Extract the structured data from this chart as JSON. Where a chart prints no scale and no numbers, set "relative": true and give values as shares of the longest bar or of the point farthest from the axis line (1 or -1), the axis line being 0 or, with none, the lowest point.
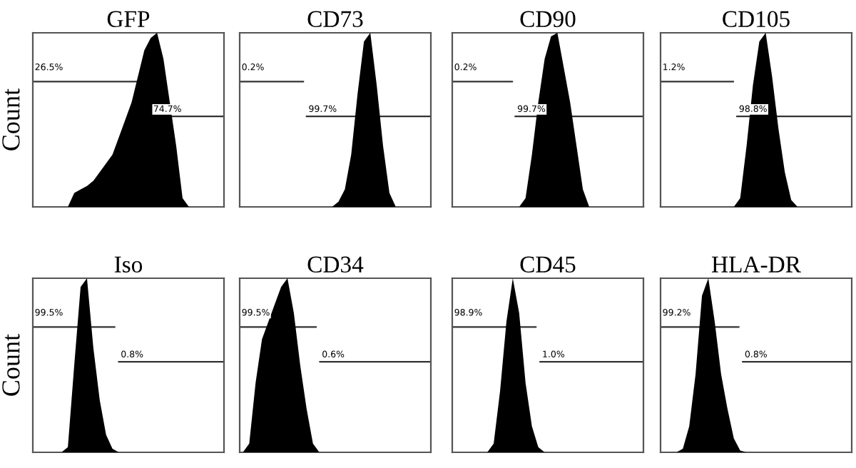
{
  "chart_data": [
    {
      "type": "area",
      "relative": true,
      "title": "GFP",
      "ylabel": "Count",
      "color": "#000000",
      "categories": [
        null,
        null,
        null,
        null,
        null,
        null,
        null,
        null,
        null,
        null,
        null,
        null,
        null,
        null,
        null,
        null,
        null,
        null,
        null,
        null,
        null,
        null,
        null,
        null,
        null,
        null,
        null,
        null,
        null,
        null
      ],
      "values": [
        0,
        0,
        0,
        0,
        0,
        0,
        0.08,
        0.1,
        0.12,
        0.15,
        0.2,
        0.25,
        0.3,
        0.4,
        0.5,
        0.6,
        0.75,
        0.9,
        0.97,
        1.0,
        0.85,
        0.6,
        0.35,
        0.05,
        0,
        0,
        0,
        0,
        0,
        0
      ],
      "annotations": [
        "26.5%",
        "74.7%"
      ]
    },
    {
      "type": "area",
      "relative": true,
      "title": "CD73",
      "color": "#000000",
      "categories": [
        null,
        null,
        null,
        null,
        null,
        null,
        null,
        null,
        null,
        null,
        null,
        null,
        null,
        null,
        null,
        null,
        null,
        null,
        null,
        null,
        null,
        null,
        null,
        null,
        null,
        null,
        null,
        null,
        null,
        null
      ],
      "values": [
        0,
        0,
        0,
        0,
        0,
        0,
        0,
        0,
        0,
        0,
        0,
        0,
        0,
        0,
        0,
        0.03,
        0.1,
        0.3,
        0.65,
        0.95,
        1.0,
        0.7,
        0.35,
        0.08,
        0,
        0,
        0,
        0,
        0,
        0
      ],
      "annotations": [
        "0.2%",
        "99.7%"
      ]
    },
    {
      "type": "area",
      "relative": true,
      "title": "CD90",
      "color": "#000000",
      "categories": [
        null,
        null,
        null,
        null,
        null,
        null,
        null,
        null,
        null,
        null,
        null,
        null,
        null,
        null,
        null,
        null,
        null,
        null,
        null,
        null,
        null,
        null,
        null,
        null,
        null,
        null,
        null,
        null,
        null,
        null
      ],
      "values": [
        0,
        0,
        0,
        0,
        0,
        0,
        0,
        0,
        0,
        0,
        0,
        0.05,
        0.3,
        0.6,
        0.85,
        0.98,
        1.0,
        0.8,
        0.6,
        0.35,
        0.1,
        0,
        0,
        0,
        0,
        0,
        0,
        0,
        0,
        0
      ],
      "annotations": [
        "0.2%",
        "99.7%"
      ]
    },
    {
      "type": "area",
      "relative": true,
      "title": "CD105",
      "color": "#000000",
      "categories": [
        null,
        null,
        null,
        null,
        null,
        null,
        null,
        null,
        null,
        null,
        null,
        null,
        null,
        null,
        null,
        null,
        null,
        null,
        null,
        null,
        null,
        null,
        null,
        null,
        null,
        null,
        null,
        null,
        null,
        null
      ],
      "values": [
        0,
        0,
        0,
        0,
        0,
        0,
        0,
        0,
        0,
        0,
        0,
        0,
        0.05,
        0.35,
        0.7,
        0.95,
        1.0,
        0.75,
        0.45,
        0.2,
        0.04,
        0,
        0,
        0,
        0,
        0,
        0,
        0,
        0,
        0
      ],
      "annotations": [
        "1.2%",
        "98.8%"
      ]
    },
    {
      "type": "area",
      "relative": true,
      "title": "Iso",
      "ylabel": "Count",
      "color": "#000000",
      "categories": [
        null,
        null,
        null,
        null,
        null,
        null,
        null,
        null,
        null,
        null,
        null,
        null,
        null,
        null,
        null,
        null,
        null,
        null,
        null,
        null,
        null,
        null,
        null,
        null,
        null,
        null,
        null,
        null,
        null,
        null
      ],
      "values": [
        0,
        0,
        0,
        0,
        0,
        0.03,
        0.5,
        0.95,
        1.0,
        0.6,
        0.3,
        0.1,
        0.02,
        0,
        0,
        0,
        0,
        0,
        0,
        0,
        0,
        0,
        0,
        0,
        0,
        0,
        0,
        0,
        0,
        0
      ],
      "annotations": [
        "99.5%",
        "0.8%"
      ]
    },
    {
      "type": "area",
      "relative": true,
      "title": "CD34",
      "color": "#000000",
      "categories": [
        null,
        null,
        null,
        null,
        null,
        null,
        null,
        null,
        null,
        null,
        null,
        null,
        null,
        null,
        null,
        null,
        null,
        null,
        null,
        null,
        null,
        null,
        null,
        null,
        null,
        null,
        null,
        null,
        null,
        null
      ],
      "values": [
        0,
        0.05,
        0.4,
        0.65,
        0.75,
        0.85,
        0.95,
        1.0,
        0.8,
        0.5,
        0.25,
        0.05,
        0,
        0,
        0,
        0,
        0,
        0,
        0,
        0,
        0,
        0,
        0,
        0,
        0,
        0,
        0,
        0,
        0,
        0
      ],
      "annotations": [
        "99.5%",
        "0.6%"
      ]
    },
    {
      "type": "area",
      "relative": true,
      "title": "CD45",
      "color": "#000000",
      "categories": [
        null,
        null,
        null,
        null,
        null,
        null,
        null,
        null,
        null,
        null,
        null,
        null,
        null,
        null,
        null,
        null,
        null,
        null,
        null,
        null,
        null,
        null,
        null,
        null,
        null,
        null,
        null,
        null,
        null,
        null
      ],
      "values": [
        0,
        0,
        0,
        0,
        0,
        0,
        0.05,
        0.35,
        0.75,
        1.0,
        0.8,
        0.4,
        0.15,
        0.03,
        0,
        0,
        0,
        0,
        0,
        0,
        0,
        0,
        0,
        0,
        0,
        0,
        0,
        0,
        0,
        0
      ],
      "annotations": [
        "98.9%",
        "1.0%"
      ]
    },
    {
      "type": "area",
      "relative": true,
      "title": "HLA-DR",
      "color": "#000000",
      "categories": [
        null,
        null,
        null,
        null,
        null,
        null,
        null,
        null,
        null,
        null,
        null,
        null,
        null,
        null,
        null,
        null,
        null,
        null,
        null,
        null,
        null,
        null,
        null,
        null,
        null,
        null,
        null,
        null,
        null,
        null
      ],
      "values": [
        0,
        0,
        0,
        0.02,
        0.15,
        0.45,
        0.9,
        1.0,
        0.75,
        0.45,
        0.25,
        0.08,
        0.01,
        0,
        0,
        0,
        0,
        0,
        0,
        0,
        0,
        0,
        0,
        0,
        0,
        0,
        0,
        0,
        0,
        0
      ],
      "annotations": [
        "99.2%",
        "0.8%"
      ]
    }
  ]
}
